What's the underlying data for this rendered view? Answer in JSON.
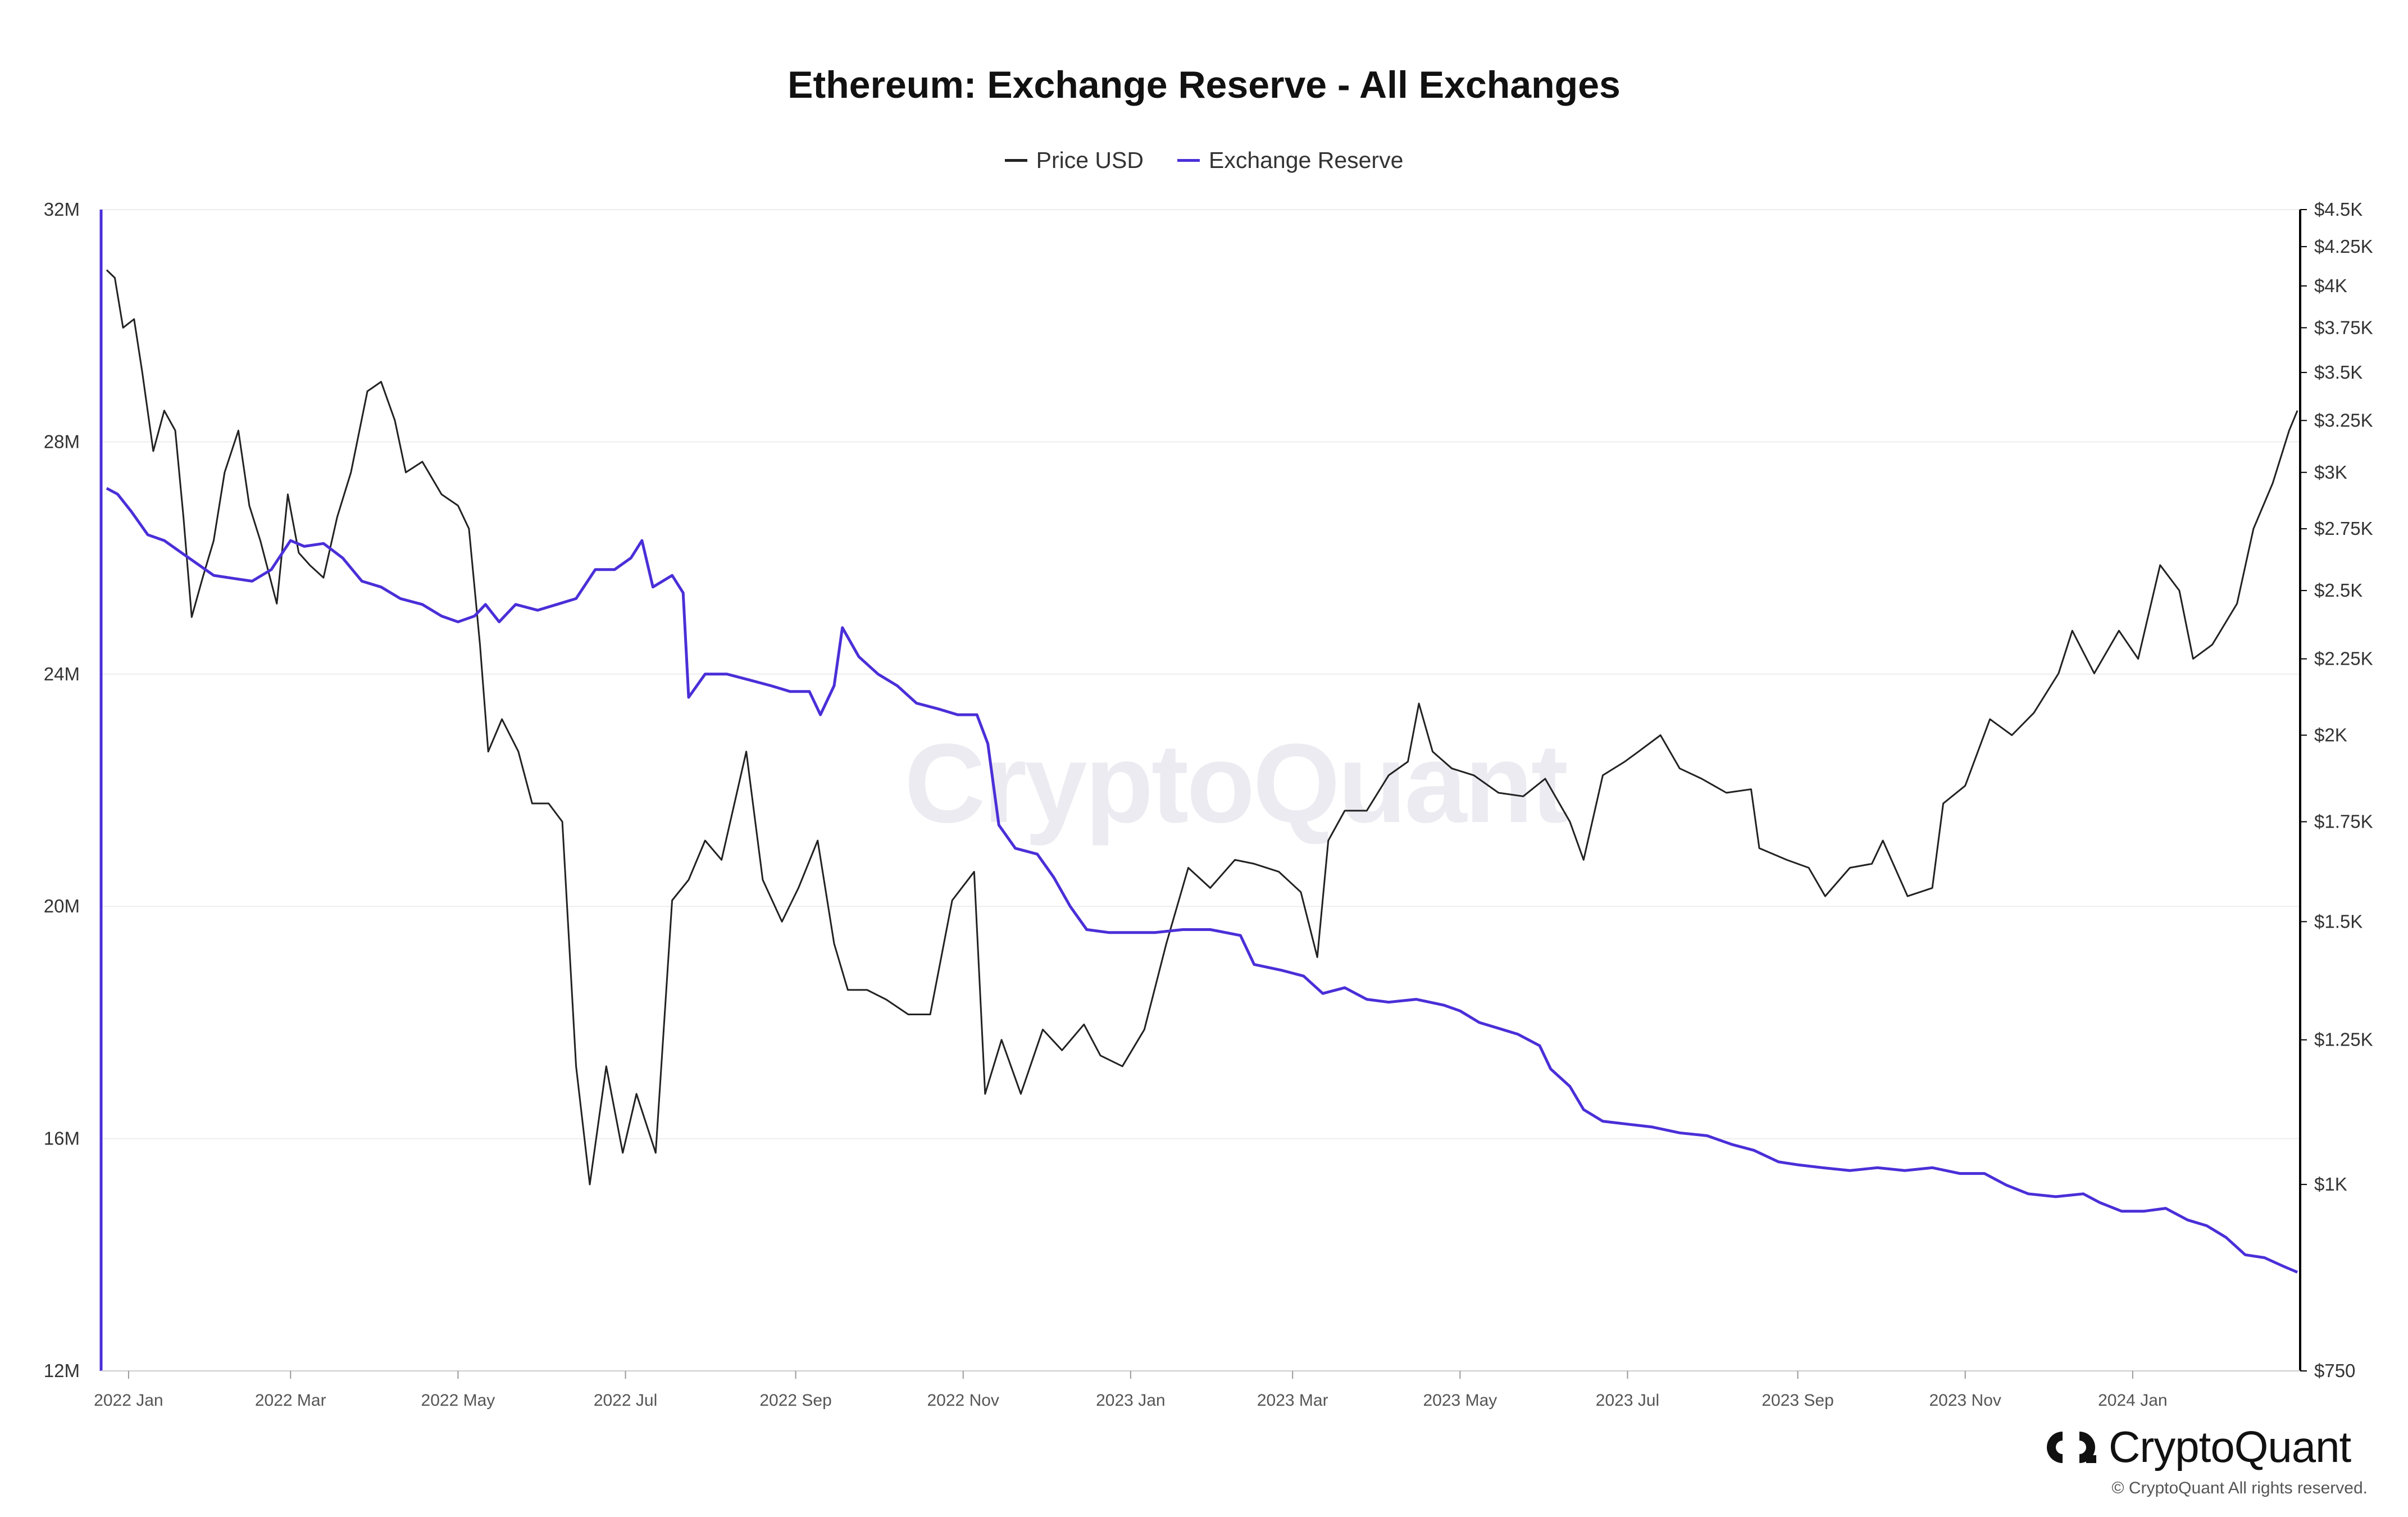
{
  "chart_data": {
    "type": "line",
    "title": "Ethereum: Exchange Reserve - All Exchanges",
    "legend_position": "top-center",
    "grid": true,
    "series": [
      {
        "name": "Price USD",
        "axis": "right",
        "scale": "log",
        "color": "#222222",
        "points": [
          [
            "2021-12-24",
            4100
          ],
          [
            "2021-12-27",
            4050
          ],
          [
            "2021-12-30",
            3750
          ],
          [
            "2022-01-03",
            3800
          ],
          [
            "2022-01-06",
            3500
          ],
          [
            "2022-01-10",
            3100
          ],
          [
            "2022-01-14",
            3300
          ],
          [
            "2022-01-18",
            3200
          ],
          [
            "2022-01-21",
            2800
          ],
          [
            "2022-01-24",
            2400
          ],
          [
            "2022-01-28",
            2550
          ],
          [
            "2022-02-01",
            2700
          ],
          [
            "2022-02-05",
            3000
          ],
          [
            "2022-02-10",
            3200
          ],
          [
            "2022-02-14",
            2850
          ],
          [
            "2022-02-18",
            2700
          ],
          [
            "2022-02-24",
            2450
          ],
          [
            "2022-02-28",
            2900
          ],
          [
            "2022-03-04",
            2650
          ],
          [
            "2022-03-08",
            2600
          ],
          [
            "2022-03-13",
            2550
          ],
          [
            "2022-03-18",
            2800
          ],
          [
            "2022-03-23",
            3000
          ],
          [
            "2022-03-29",
            3400
          ],
          [
            "2022-04-03",
            3450
          ],
          [
            "2022-04-08",
            3250
          ],
          [
            "2022-04-12",
            3000
          ],
          [
            "2022-04-18",
            3050
          ],
          [
            "2022-04-25",
            2900
          ],
          [
            "2022-05-01",
            2850
          ],
          [
            "2022-05-05",
            2750
          ],
          [
            "2022-05-09",
            2300
          ],
          [
            "2022-05-12",
            1950
          ],
          [
            "2022-05-17",
            2050
          ],
          [
            "2022-05-23",
            1950
          ],
          [
            "2022-05-28",
            1800
          ],
          [
            "2022-06-03",
            1800
          ],
          [
            "2022-06-08",
            1750
          ],
          [
            "2022-06-13",
            1200
          ],
          [
            "2022-06-18",
            1000
          ],
          [
            "2022-06-24",
            1200
          ],
          [
            "2022-06-30",
            1050
          ],
          [
            "2022-07-05",
            1150
          ],
          [
            "2022-07-12",
            1050
          ],
          [
            "2022-07-18",
            1550
          ],
          [
            "2022-07-24",
            1600
          ],
          [
            "2022-07-30",
            1700
          ],
          [
            "2022-08-05",
            1650
          ],
          [
            "2022-08-14",
            1950
          ],
          [
            "2022-08-20",
            1600
          ],
          [
            "2022-08-27",
            1500
          ],
          [
            "2022-09-02",
            1580
          ],
          [
            "2022-09-09",
            1700
          ],
          [
            "2022-09-15",
            1450
          ],
          [
            "2022-09-20",
            1350
          ],
          [
            "2022-09-27",
            1350
          ],
          [
            "2022-10-04",
            1330
          ],
          [
            "2022-10-12",
            1300
          ],
          [
            "2022-10-20",
            1300
          ],
          [
            "2022-10-28",
            1550
          ],
          [
            "2022-11-05",
            1620
          ],
          [
            "2022-11-09",
            1150
          ],
          [
            "2022-11-15",
            1250
          ],
          [
            "2022-11-22",
            1150
          ],
          [
            "2022-11-30",
            1270
          ],
          [
            "2022-12-07",
            1230
          ],
          [
            "2022-12-15",
            1280
          ],
          [
            "2022-12-21",
            1220
          ],
          [
            "2022-12-29",
            1200
          ],
          [
            "2023-01-06",
            1270
          ],
          [
            "2023-01-14",
            1450
          ],
          [
            "2023-01-22",
            1630
          ],
          [
            "2023-01-30",
            1580
          ],
          [
            "2023-02-08",
            1650
          ],
          [
            "2023-02-15",
            1640
          ],
          [
            "2023-02-24",
            1620
          ],
          [
            "2023-03-04",
            1570
          ],
          [
            "2023-03-10",
            1420
          ],
          [
            "2023-03-14",
            1700
          ],
          [
            "2023-03-20",
            1780
          ],
          [
            "2023-03-28",
            1780
          ],
          [
            "2023-04-05",
            1880
          ],
          [
            "2023-04-12",
            1920
          ],
          [
            "2023-04-16",
            2100
          ],
          [
            "2023-04-21",
            1950
          ],
          [
            "2023-04-28",
            1900
          ],
          [
            "2023-05-06",
            1880
          ],
          [
            "2023-05-15",
            1830
          ],
          [
            "2023-05-24",
            1820
          ],
          [
            "2023-06-01",
            1870
          ],
          [
            "2023-06-10",
            1750
          ],
          [
            "2023-06-15",
            1650
          ],
          [
            "2023-06-22",
            1880
          ],
          [
            "2023-06-30",
            1920
          ],
          [
            "2023-07-05",
            1950
          ],
          [
            "2023-07-13",
            2000
          ],
          [
            "2023-07-20",
            1900
          ],
          [
            "2023-07-28",
            1870
          ],
          [
            "2023-08-06",
            1830
          ],
          [
            "2023-08-15",
            1840
          ],
          [
            "2023-08-18",
            1680
          ],
          [
            "2023-08-28",
            1650
          ],
          [
            "2023-09-05",
            1630
          ],
          [
            "2023-09-11",
            1560
          ],
          [
            "2023-09-20",
            1630
          ],
          [
            "2023-09-28",
            1640
          ],
          [
            "2023-10-02",
            1700
          ],
          [
            "2023-10-11",
            1560
          ],
          [
            "2023-10-20",
            1580
          ],
          [
            "2023-10-24",
            1800
          ],
          [
            "2023-11-01",
            1850
          ],
          [
            "2023-11-10",
            2050
          ],
          [
            "2023-11-18",
            2000
          ],
          [
            "2023-11-26",
            2070
          ],
          [
            "2023-12-05",
            2200
          ],
          [
            "2023-12-10",
            2350
          ],
          [
            "2023-12-18",
            2200
          ],
          [
            "2023-12-27",
            2350
          ],
          [
            "2024-01-03",
            2250
          ],
          [
            "2024-01-11",
            2600
          ],
          [
            "2024-01-18",
            2500
          ],
          [
            "2024-01-23",
            2250
          ],
          [
            "2024-01-30",
            2300
          ],
          [
            "2024-02-08",
            2450
          ],
          [
            "2024-02-14",
            2750
          ],
          [
            "2024-02-21",
            2950
          ],
          [
            "2024-02-27",
            3200
          ],
          [
            "2024-03-01",
            3300
          ]
        ]
      },
      {
        "name": "Exchange Reserve",
        "axis": "left",
        "scale": "linear",
        "color": "#4a2fd8",
        "points": [
          [
            "2021-12-24",
            27.2
          ],
          [
            "2021-12-28",
            27.1
          ],
          [
            "2022-01-02",
            26.8
          ],
          [
            "2022-01-08",
            26.4
          ],
          [
            "2022-01-14",
            26.3
          ],
          [
            "2022-01-20",
            26.1
          ],
          [
            "2022-01-26",
            25.9
          ],
          [
            "2022-02-01",
            25.7
          ],
          [
            "2022-02-08",
            25.65
          ],
          [
            "2022-02-15",
            25.6
          ],
          [
            "2022-02-22",
            25.8
          ],
          [
            "2022-03-01",
            26.3
          ],
          [
            "2022-03-06",
            26.2
          ],
          [
            "2022-03-13",
            26.25
          ],
          [
            "2022-03-20",
            26.0
          ],
          [
            "2022-03-27",
            25.6
          ],
          [
            "2022-04-03",
            25.5
          ],
          [
            "2022-04-10",
            25.3
          ],
          [
            "2022-04-18",
            25.2
          ],
          [
            "2022-04-25",
            25.0
          ],
          [
            "2022-05-01",
            24.9
          ],
          [
            "2022-05-07",
            25.0
          ],
          [
            "2022-05-11",
            25.2
          ],
          [
            "2022-05-16",
            24.9
          ],
          [
            "2022-05-22",
            25.2
          ],
          [
            "2022-05-30",
            25.1
          ],
          [
            "2022-06-06",
            25.2
          ],
          [
            "2022-06-13",
            25.3
          ],
          [
            "2022-06-20",
            25.8
          ],
          [
            "2022-06-27",
            25.8
          ],
          [
            "2022-07-03",
            26.0
          ],
          [
            "2022-07-07",
            26.3
          ],
          [
            "2022-07-11",
            25.5
          ],
          [
            "2022-07-18",
            25.7
          ],
          [
            "2022-07-22",
            25.4
          ],
          [
            "2022-07-24",
            23.6
          ],
          [
            "2022-07-30",
            24.0
          ],
          [
            "2022-08-07",
            24.0
          ],
          [
            "2022-08-15",
            23.9
          ],
          [
            "2022-08-23",
            23.8
          ],
          [
            "2022-08-30",
            23.7
          ],
          [
            "2022-09-06",
            23.7
          ],
          [
            "2022-09-10",
            23.3
          ],
          [
            "2022-09-15",
            23.8
          ],
          [
            "2022-09-18",
            24.8
          ],
          [
            "2022-09-24",
            24.3
          ],
          [
            "2022-10-01",
            24.0
          ],
          [
            "2022-10-08",
            23.8
          ],
          [
            "2022-10-15",
            23.5
          ],
          [
            "2022-10-23",
            23.4
          ],
          [
            "2022-10-30",
            23.3
          ],
          [
            "2022-11-06",
            23.3
          ],
          [
            "2022-11-10",
            22.8
          ],
          [
            "2022-11-14",
            21.4
          ],
          [
            "2022-11-20",
            21.0
          ],
          [
            "2022-11-28",
            20.9
          ],
          [
            "2022-12-04",
            20.5
          ],
          [
            "2022-12-10",
            20.0
          ],
          [
            "2022-12-16",
            19.6
          ],
          [
            "2022-12-24",
            19.55
          ],
          [
            "2023-01-01",
            19.55
          ],
          [
            "2023-01-10",
            19.55
          ],
          [
            "2023-01-20",
            19.6
          ],
          [
            "2023-01-30",
            19.6
          ],
          [
            "2023-02-10",
            19.5
          ],
          [
            "2023-02-15",
            19.0
          ],
          [
            "2023-02-25",
            18.9
          ],
          [
            "2023-03-05",
            18.8
          ],
          [
            "2023-03-12",
            18.5
          ],
          [
            "2023-03-20",
            18.6
          ],
          [
            "2023-03-28",
            18.4
          ],
          [
            "2023-04-05",
            18.35
          ],
          [
            "2023-04-15",
            18.4
          ],
          [
            "2023-04-25",
            18.3
          ],
          [
            "2023-05-01",
            18.2
          ],
          [
            "2023-05-08",
            18.0
          ],
          [
            "2023-05-15",
            17.9
          ],
          [
            "2023-05-22",
            17.8
          ],
          [
            "2023-05-30",
            17.6
          ],
          [
            "2023-06-03",
            17.2
          ],
          [
            "2023-06-10",
            16.9
          ],
          [
            "2023-06-15",
            16.5
          ],
          [
            "2023-06-22",
            16.3
          ],
          [
            "2023-07-01",
            16.25
          ],
          [
            "2023-07-10",
            16.2
          ],
          [
            "2023-07-20",
            16.1
          ],
          [
            "2023-07-30",
            16.05
          ],
          [
            "2023-08-08",
            15.9
          ],
          [
            "2023-08-16",
            15.8
          ],
          [
            "2023-08-25",
            15.6
          ],
          [
            "2023-09-01",
            15.55
          ],
          [
            "2023-09-10",
            15.5
          ],
          [
            "2023-09-20",
            15.45
          ],
          [
            "2023-09-30",
            15.5
          ],
          [
            "2023-10-10",
            15.45
          ],
          [
            "2023-10-20",
            15.5
          ],
          [
            "2023-10-30",
            15.4
          ],
          [
            "2023-11-08",
            15.4
          ],
          [
            "2023-11-16",
            15.2
          ],
          [
            "2023-11-24",
            15.05
          ],
          [
            "2023-12-04",
            15.0
          ],
          [
            "2023-12-14",
            15.05
          ],
          [
            "2023-12-20",
            14.9
          ],
          [
            "2023-12-28",
            14.75
          ],
          [
            "2024-01-05",
            14.75
          ],
          [
            "2024-01-13",
            14.8
          ],
          [
            "2024-01-21",
            14.6
          ],
          [
            "2024-01-28",
            14.5
          ],
          [
            "2024-02-04",
            14.3
          ],
          [
            "2024-02-11",
            14.0
          ],
          [
            "2024-02-18",
            13.95
          ],
          [
            "2024-02-25",
            13.8
          ],
          [
            "2024-03-01",
            13.7
          ]
        ]
      }
    ],
    "y_left": {
      "ticks": [
        12,
        16,
        20,
        24,
        28,
        32
      ],
      "tick_labels": [
        "12M",
        "16M",
        "20M",
        "24M",
        "28M",
        "32M"
      ],
      "range": [
        12,
        32
      ],
      "color": "#4a2fd8"
    },
    "y_right": {
      "ticks": [
        750,
        1000,
        1250,
        1500,
        1750,
        2000,
        2250,
        2500,
        2750,
        3000,
        3250,
        3500,
        3750,
        4000,
        4250,
        4500
      ],
      "tick_labels": [
        "$750",
        "$1K",
        "$1.25K",
        "$1.5K",
        "$1.75K",
        "$2K",
        "$2.25K",
        "$2.5K",
        "$2.75K",
        "$3K",
        "$3.25K",
        "$3.5K",
        "$3.75K",
        "$4K",
        "$4.25K",
        "$4.5K"
      ],
      "range": [
        750,
        4500
      ],
      "color": "#000000"
    },
    "x_axis": {
      "range": [
        "2021-12-22",
        "2024-03-02"
      ],
      "ticks": [
        "2022-01-01",
        "2022-03-01",
        "2022-05-01",
        "2022-07-01",
        "2022-09-01",
        "2022-11-01",
        "2023-01-01",
        "2023-03-01",
        "2023-05-01",
        "2023-07-01",
        "2023-09-01",
        "2023-11-01",
        "2024-01-01"
      ],
      "tick_labels": [
        "2022 Jan",
        "2022 Mar",
        "2022 May",
        "2022 Jul",
        "2022 Sep",
        "2022 Nov",
        "2023 Jan",
        "2023 Mar",
        "2023 May",
        "2023 Jul",
        "2023 Sep",
        "2023 Nov",
        "2024 Jan"
      ]
    }
  },
  "watermark": "CryptoQuant",
  "brand": {
    "name": "CryptoQuant",
    "icon": "cryptoquant-logo-icon",
    "copyright": "© CryptoQuant All rights reserved."
  }
}
